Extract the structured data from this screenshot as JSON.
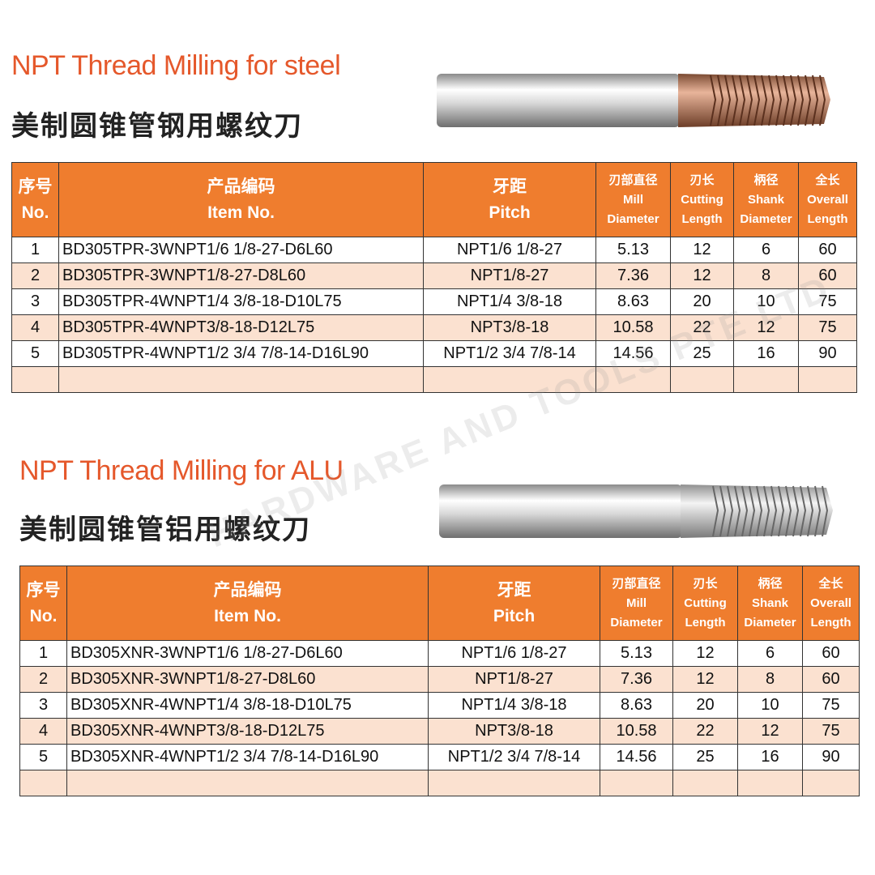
{
  "sections": [
    {
      "title": "NPT Thread Milling for steel",
      "subtitle": "美制圆锥管钢用螺纹刀",
      "table": {
        "header": [
          [
            "序号",
            "No."
          ],
          [
            "产品编码",
            "Item No."
          ],
          [
            "牙距",
            "Pitch"
          ],
          [
            "刃部直径",
            "Mill",
            "Diameter"
          ],
          [
            "刃长",
            "Cutting",
            "Length"
          ],
          [
            "柄径",
            "Shank",
            "Diameter"
          ],
          [
            "全长",
            "Overall",
            "Length"
          ]
        ],
        "rows": [
          [
            "1",
            "BD305TPR-3WNPT1/6 1/8-27-D6L60",
            "NPT1/6 1/8-27",
            "5.13",
            "12",
            "6",
            "60"
          ],
          [
            "2",
            "BD305TPR-3WNPT1/8-27-D8L60",
            "NPT1/8-27",
            "7.36",
            "12",
            "8",
            "60"
          ],
          [
            "3",
            "BD305TPR-4WNPT1/4 3/8-18-D10L75",
            "NPT1/4 3/8-18",
            "8.63",
            "20",
            "10",
            "75"
          ],
          [
            "4",
            "BD305TPR-4WNPT3/8-18-D12L75",
            "NPT3/8-18",
            "10.58",
            "22",
            "12",
            "75"
          ],
          [
            "5",
            "BD305TPR-4WNPT1/2 3/4 7/8-14-D16L90",
            "NPT1/2 3/4 7/8-14",
            "14.56",
            "25",
            "16",
            "90"
          ]
        ]
      }
    },
    {
      "title": "NPT Thread Milling for ALU",
      "subtitle": "美制圆锥管铝用螺纹刀",
      "table": {
        "header": [
          [
            "序号",
            "No."
          ],
          [
            "产品编码",
            "Item No."
          ],
          [
            "牙距",
            "Pitch"
          ],
          [
            "刃部直径",
            "Mill",
            "Diameter"
          ],
          [
            "刃长",
            "Cutting",
            "Length"
          ],
          [
            "柄径",
            "Shank",
            "Diameter"
          ],
          [
            "全长",
            "Overall",
            "Length"
          ]
        ],
        "rows": [
          [
            "1",
            "BD305XNR-3WNPT1/6 1/8-27-D6L60",
            "NPT1/6 1/8-27",
            "5.13",
            "12",
            "6",
            "60"
          ],
          [
            "2",
            "BD305XNR-3WNPT1/8-27-D8L60",
            "NPT1/8-27",
            "7.36",
            "12",
            "8",
            "60"
          ],
          [
            "3",
            "BD305XNR-4WNPT1/4 3/8-18-D10L75",
            "NPT1/4 3/8-18",
            "8.63",
            "20",
            "10",
            "75"
          ],
          [
            "4",
            "BD305XNR-4WNPT3/8-18-D12L75",
            "NPT3/8-18",
            "10.58",
            "22",
            "12",
            "75"
          ],
          [
            "5",
            "BD305XNR-4WNPT1/2 3/4 7/8-14-D16L90",
            "NPT1/2 3/4 7/8-14",
            "14.56",
            "25",
            "16",
            "90"
          ]
        ]
      }
    }
  ],
  "watermark": "HARDWARE AND TOOLS PTE LTD"
}
